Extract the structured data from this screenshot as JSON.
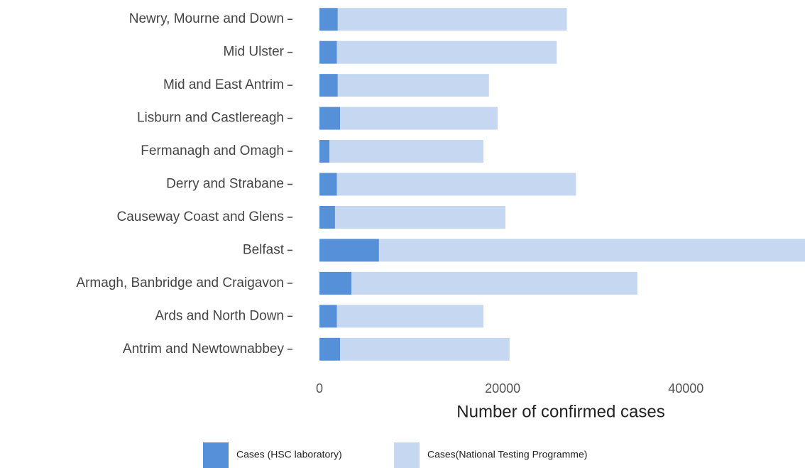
{
  "chart_data": {
    "type": "stacked_barh",
    "x_label": "Number of confirmed cases",
    "categories": [
      "Newry, Mourne and Down",
      "Mid Ulster",
      "Mid and East Antrim",
      "Lisburn and Castlereagh",
      "Fermanagh and Omagh",
      "Derry and Strabane",
      "Causeway Coast and Glens",
      "Belfast",
      "Armagh, Banbridge and Craigavon",
      "Ards and North Down",
      "Antrim and Newtownabbey"
    ],
    "series": [
      {
        "name": "Cases (HSC laboratory)",
        "color": "#5590d9",
        "values": [
          2000,
          1900,
          2000,
          2250,
          1100,
          1900,
          1700,
          6500,
          3500,
          1900,
          2250
        ]
      },
      {
        "name": "Cases(National Testing Programme)",
        "color": "#c6d8f1",
        "values": [
          25000,
          24000,
          16500,
          17200,
          16800,
          26100,
          18600,
          46500,
          31200,
          16000,
          18500
        ]
      }
    ],
    "xlim": [
      0,
      53000
    ],
    "xticks": [
      0,
      20000,
      40000
    ],
    "legend": "bottom"
  }
}
